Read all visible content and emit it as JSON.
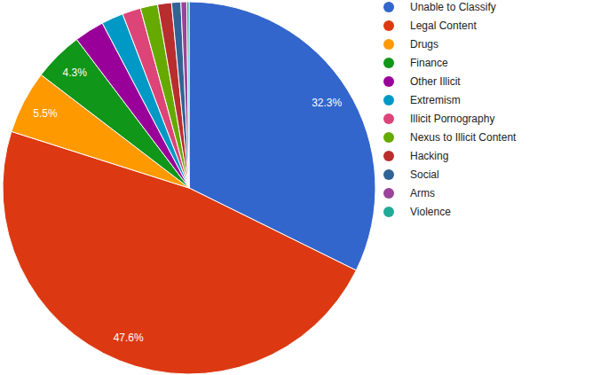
{
  "chart_data": {
    "type": "pie",
    "categories": [
      "Unable to Classify",
      "Legal Content",
      "Drugs",
      "Finance",
      "Other Illicit",
      "Extremism",
      "Illicit Pornography",
      "Nexus to Illicit Content",
      "Hacking",
      "Social",
      "Arms",
      "Violence"
    ],
    "values": [
      32.3,
      47.6,
      5.5,
      4.3,
      2.6,
      1.9,
      1.6,
      1.5,
      1.2,
      0.8,
      0.5,
      0.2
    ],
    "colors": [
      "#3366cc",
      "#dc3912",
      "#ff9900",
      "#109618",
      "#990099",
      "#0099c6",
      "#dd4477",
      "#66aa00",
      "#b82e2e",
      "#316395",
      "#994499",
      "#22aa99"
    ],
    "data_labels": true,
    "value_labels": [
      "32.3%",
      "47.6%",
      "5.5%",
      "4.3%",
      null,
      null,
      null,
      null,
      null,
      null,
      null,
      null
    ],
    "legend": "right"
  }
}
